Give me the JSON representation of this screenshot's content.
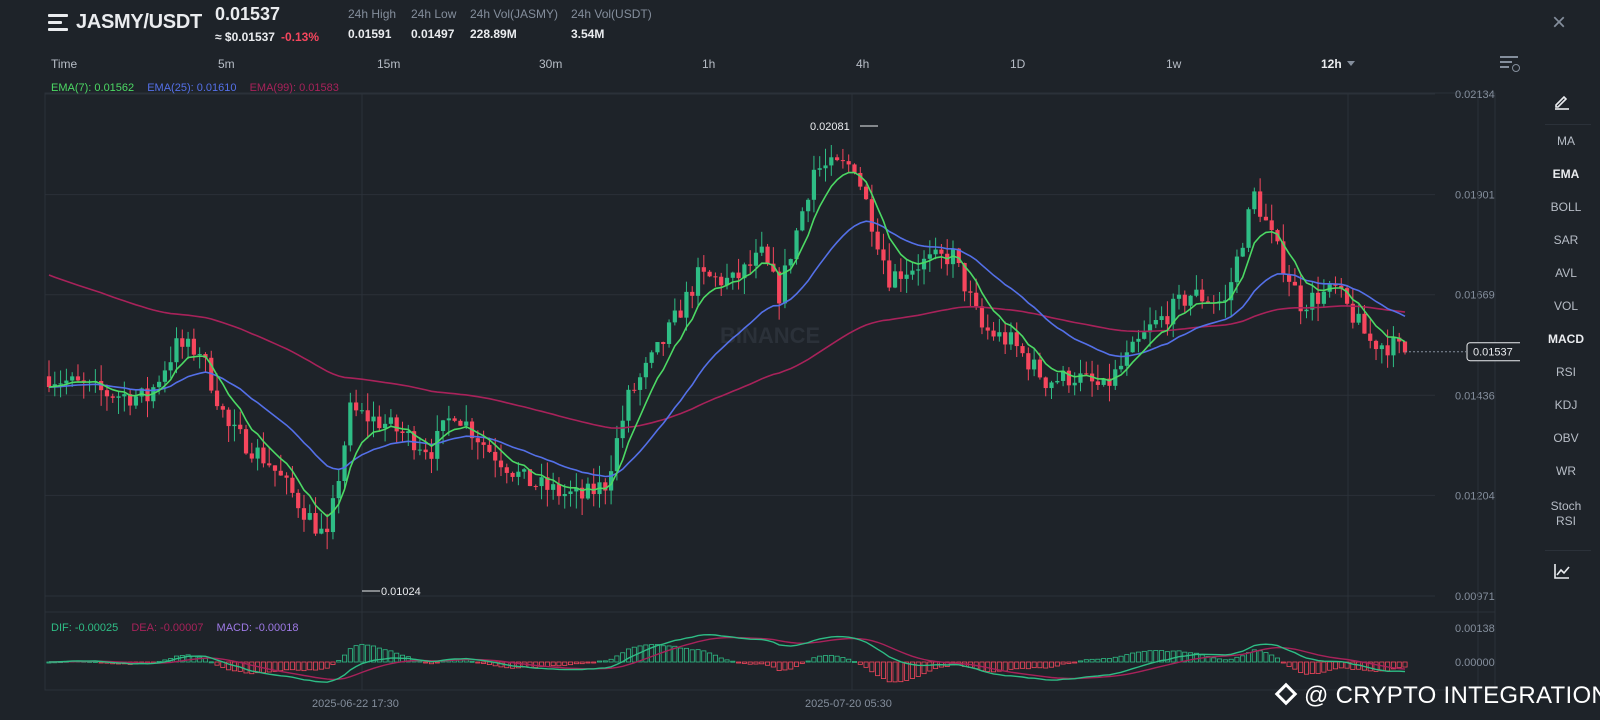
{
  "header": {
    "pair": "JASMY/USDT",
    "price": "0.01537",
    "approx_price": "≈ $0.01537",
    "change": "-0.13%",
    "stats": [
      {
        "label": "24h High",
        "value": "0.01591"
      },
      {
        "label": "24h Low",
        "value": "0.01497"
      },
      {
        "label": "24h Vol(JASMY)",
        "value": "228.89M"
      },
      {
        "label": "24h Vol(USDT)",
        "value": "3.54M"
      }
    ]
  },
  "timeframes": [
    "Time",
    "5m",
    "15m",
    "30m",
    "1h",
    "4h",
    "1D",
    "1w",
    "12h"
  ],
  "active_timeframe": "12h",
  "ema_legend": {
    "ema7": "EMA(7): 0.01562",
    "ema25": "EMA(25): 0.01610",
    "ema99": "EMA(99): 0.01583"
  },
  "macd_legend": {
    "dif": "DIF: -0.00025",
    "dea": "DEA: -0.00007",
    "macd": "MACD: -0.00018"
  },
  "sidebar": {
    "items": [
      "MA",
      "EMA",
      "BOLL",
      "SAR",
      "AVL",
      "VOL",
      "MACD",
      "RSI",
      "KDJ",
      "OBV",
      "WR",
      "Stoch RSI"
    ],
    "active": [
      "EMA",
      "MACD"
    ]
  },
  "watermark": "@ CRYPTO INTEGRATION",
  "chart_data": {
    "type": "candlestick",
    "price_axis_ticks": [
      0.02134,
      0.01901,
      0.01669,
      0.01436,
      0.01204,
      0.00971
    ],
    "macd_axis_ticks": [
      0.00138,
      0.0
    ],
    "ylim": [
      0.00971,
      0.02134
    ],
    "time_labels": [
      "2025-06-22 17:30",
      "2025-07-20 05:30"
    ],
    "current_price": "0.01537",
    "high_marker": "0.02081",
    "low_marker": "0.01024",
    "background_logo": "BINANCE",
    "colors": {
      "up": "#2ebd85",
      "down": "#f6465d",
      "ema7": "#4cd964",
      "ema25": "#5470e8",
      "ema99": "#a8225a",
      "dif": "#2ebd85",
      "dea": "#a8225a",
      "macd": "#9e7ae6"
    }
  }
}
